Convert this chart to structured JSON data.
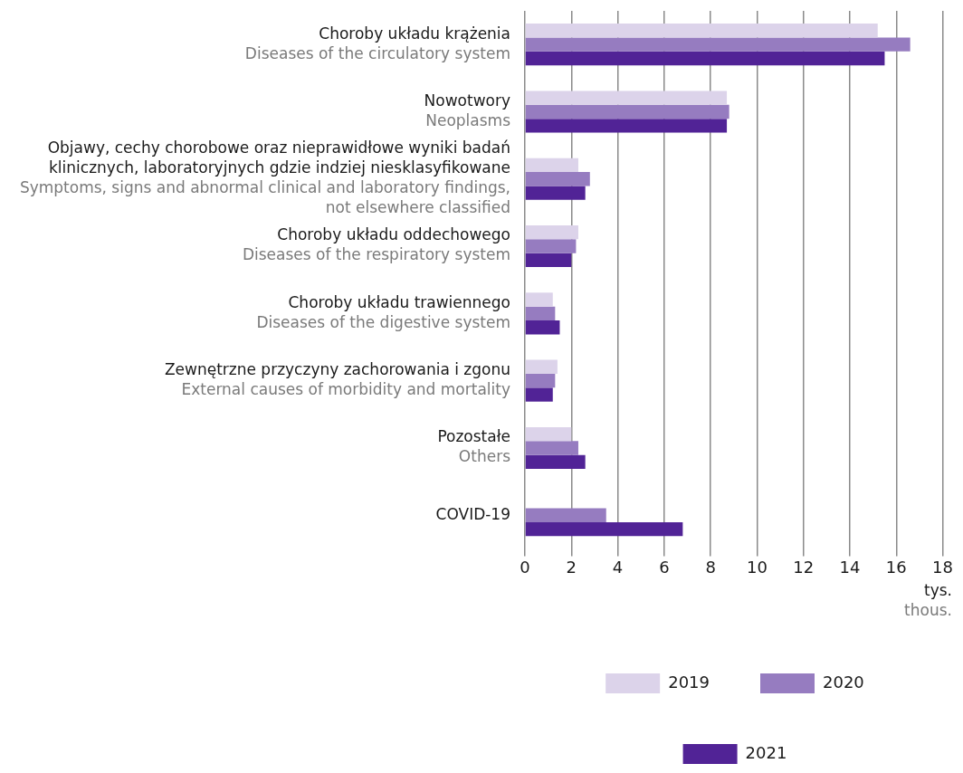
{
  "chart_data": {
    "type": "bar",
    "orientation": "horizontal",
    "categories": [
      "Choroby układu krążenia\nDiseases of the circulatory system",
      "Nowotwory\nNeoplasms",
      "Objawy, cechy chorobowe oraz nieprawidłowe wyniki badań klinicznych, laboratoryjnych gdzie indziej niesklasyfikowane\nSymptoms, signs and abnormal clinical and laboratory findings, not elsewhere classified",
      "Choroby układu oddechowego\nDiseases of the respiratory system",
      "Choroby układu trawiennego\nDiseases of the digestive system",
      "Zewnętrzne przyczyny zachorowania i zgonu\nExternal causes of morbidity and mortality",
      "Pozostałe\nOthers",
      "COVID-19"
    ],
    "series": [
      {
        "name": "2019",
        "color": "#dcd3ea",
        "values": [
          15.2,
          8.7,
          2.3,
          2.3,
          1.2,
          1.4,
          2.0,
          null
        ]
      },
      {
        "name": "2020",
        "color": "#967cc0",
        "values": [
          16.6,
          8.8,
          2.8,
          2.2,
          1.3,
          1.3,
          2.3,
          3.5
        ]
      },
      {
        "name": "2021",
        "color": "#512396",
        "values": [
          15.5,
          8.7,
          2.6,
          2.0,
          1.5,
          1.2,
          2.6,
          6.8
        ]
      }
    ],
    "xlabel": "tys.\nthous.",
    "xlim": [
      0,
      18
    ],
    "xticks": [
      0,
      2,
      4,
      6,
      8,
      10,
      12,
      14,
      16,
      18
    ],
    "grid": "x",
    "legend": "bottom"
  }
}
